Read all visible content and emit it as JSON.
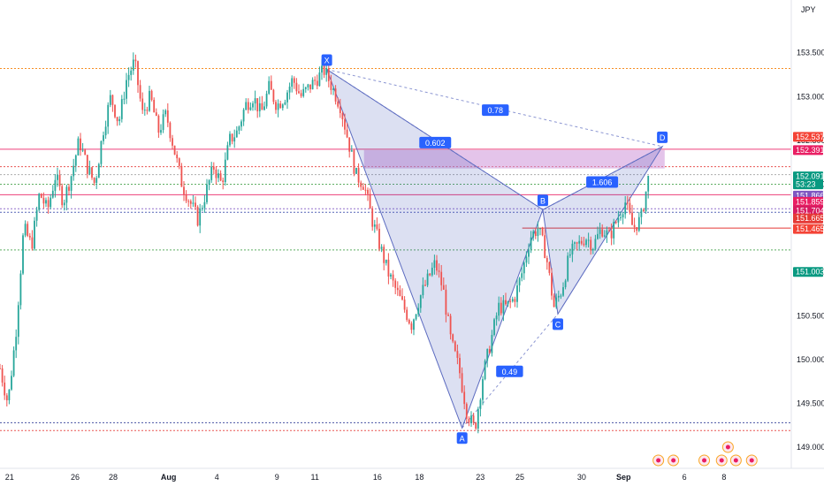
{
  "currency": "JPY",
  "chart_data": {
    "type": "candlestick",
    "ylim": [
      148.85,
      153.88
    ],
    "x_range": [
      0,
      100
    ],
    "y_ticks": [
      "153.500",
      "153.000",
      "152.500",
      "152.000",
      "151.500",
      "151.000",
      "150.500",
      "150.000",
      "149.500",
      "149.000"
    ],
    "y_tick_values": [
      153.5,
      153.0,
      152.5,
      152.0,
      151.5,
      151.0,
      150.5,
      150.0,
      149.5,
      149.0
    ],
    "x_ticks": [
      {
        "label": "21",
        "x": 1.2
      },
      {
        "label": "26",
        "x": 9.5
      },
      {
        "label": "28",
        "x": 14.3
      },
      {
        "label": "Aug",
        "x": 21.3,
        "bold": true
      },
      {
        "label": "4",
        "x": 27.4
      },
      {
        "label": "9",
        "x": 35.0
      },
      {
        "label": "11",
        "x": 39.8
      },
      {
        "label": "16",
        "x": 47.7
      },
      {
        "label": "18",
        "x": 53.0
      },
      {
        "label": "23",
        "x": 60.7
      },
      {
        "label": "25",
        "x": 65.7
      },
      {
        "label": "30",
        "x": 73.5
      },
      {
        "label": "Sep",
        "x": 78.8,
        "bold": true
      },
      {
        "label": "6",
        "x": 86.5
      },
      {
        "label": "8",
        "x": 91.5
      }
    ],
    "price_path": [
      [
        0,
        149.9
      ],
      [
        1,
        149.5
      ],
      [
        2,
        150.3
      ],
      [
        3,
        151.5
      ],
      [
        4,
        151.3
      ],
      [
        5,
        151.9
      ],
      [
        6,
        151.7
      ],
      [
        7,
        152.1
      ],
      [
        8,
        151.8
      ],
      [
        9,
        152.1
      ],
      [
        10,
        152.5
      ],
      [
        11,
        152.2
      ],
      [
        12,
        152.0
      ],
      [
        13,
        152.6
      ],
      [
        14,
        153.0
      ],
      [
        15,
        152.7
      ],
      [
        16,
        153.2
      ],
      [
        17,
        153.4
      ],
      [
        18,
        152.8
      ],
      [
        19,
        153.0
      ],
      [
        20,
        152.6
      ],
      [
        21,
        152.8
      ],
      [
        22,
        152.4
      ],
      [
        23,
        152.0
      ],
      [
        24,
        151.8
      ],
      [
        25,
        151.6
      ],
      [
        26,
        151.9
      ],
      [
        27,
        152.2
      ],
      [
        28,
        152.0
      ],
      [
        29,
        152.5
      ],
      [
        30,
        152.6
      ],
      [
        31,
        152.9
      ],
      [
        32,
        153.0
      ],
      [
        33,
        152.8
      ],
      [
        34,
        153.1
      ],
      [
        35,
        152.9
      ],
      [
        36,
        153.0
      ],
      [
        37,
        153.2
      ],
      [
        38,
        153.0
      ],
      [
        39,
        153.1
      ],
      [
        40,
        153.2
      ],
      [
        41,
        153.3
      ],
      [
        42,
        153.1
      ],
      [
        43,
        152.9
      ],
      [
        44,
        152.5
      ],
      [
        45,
        152.1
      ],
      [
        46,
        152.0
      ],
      [
        47,
        151.6
      ],
      [
        48,
        151.3
      ],
      [
        49,
        151.0
      ],
      [
        50,
        150.8
      ],
      [
        51,
        150.6
      ],
      [
        52,
        150.4
      ],
      [
        53,
        150.7
      ],
      [
        54,
        150.9
      ],
      [
        55,
        151.1
      ],
      [
        56,
        150.8
      ],
      [
        57,
        150.2
      ],
      [
        58,
        149.9
      ],
      [
        59,
        149.4
      ],
      [
        60,
        149.2
      ],
      [
        61,
        149.8
      ],
      [
        62,
        150.2
      ],
      [
        63,
        150.6
      ],
      [
        64,
        150.6
      ],
      [
        65,
        150.7
      ],
      [
        66,
        151.0
      ],
      [
        67,
        151.4
      ],
      [
        68,
        151.5
      ],
      [
        69,
        151.2
      ],
      [
        70,
        150.6
      ],
      [
        71,
        150.8
      ],
      [
        72,
        151.2
      ],
      [
        73,
        151.3
      ],
      [
        74,
        151.4
      ],
      [
        75,
        151.3
      ],
      [
        76,
        151.5
      ],
      [
        77,
        151.4
      ],
      [
        78,
        151.6
      ],
      [
        79,
        151.8
      ],
      [
        80,
        151.5
      ],
      [
        81,
        151.6
      ],
      [
        82,
        152.1
      ]
    ],
    "harmonic_pattern": {
      "points": [
        {
          "label": "X",
          "x": 41.3,
          "y": 153.31
        },
        {
          "label": "A",
          "x": 58.4,
          "y": 149.22
        },
        {
          "label": "B",
          "x": 68.6,
          "y": 151.71
        },
        {
          "label": "C",
          "x": 70.5,
          "y": 150.52
        },
        {
          "label": "D",
          "x": 83.7,
          "y": 152.43
        }
      ],
      "ratios": [
        {
          "label": "0.78",
          "x": 62.6,
          "y": 152.84
        },
        {
          "label": "0.602",
          "x": 55.0,
          "y": 152.47
        },
        {
          "label": "1.606",
          "x": 76.1,
          "y": 152.02
        },
        {
          "label": "0.49",
          "x": 64.4,
          "y": 149.86
        }
      ]
    },
    "zone": {
      "x1": 46.0,
      "x2": 84.0,
      "y_top": 152.39,
      "y_bottom": 152.18
    },
    "levels": [
      {
        "price": 153.32,
        "color": "#f57c00",
        "style": "dotted"
      },
      {
        "price": 152.4,
        "color": "#e91e63",
        "style": "solid"
      },
      {
        "price": 152.2,
        "color": "#e53935",
        "style": "dotted"
      },
      {
        "price": 152.11,
        "color": "#9e9e9e",
        "style": "dotted"
      },
      {
        "price": 152.0,
        "color": "#43a047",
        "style": "dotted"
      },
      {
        "price": 151.88,
        "color": "#e91e63",
        "style": "solid"
      },
      {
        "price": 151.72,
        "color": "#7e57c2",
        "style": "dotted"
      },
      {
        "price": 151.68,
        "color": "#3949ab",
        "style": "dotted"
      },
      {
        "price": 151.25,
        "color": "#43a047",
        "style": "dotted"
      },
      {
        "price": 149.28,
        "color": "#283593",
        "style": "dotted"
      },
      {
        "price": 149.19,
        "color": "#e53935",
        "style": "dotted"
      }
    ],
    "short_level": {
      "price": 151.5,
      "x1": 66.0,
      "x2": 100,
      "color": "#e53935"
    },
    "price_tags": [
      {
        "text": "152.537",
        "price": 152.54,
        "color": "#f44336"
      },
      {
        "text": "152.391",
        "price": 152.39,
        "color": "#e91e63"
      },
      {
        "text": "152.091",
        "price": 152.09,
        "color": "#089981",
        "sub": "53:23"
      },
      {
        "text": "151.866",
        "price": 151.87,
        "color": "#7e57c2"
      },
      {
        "text": "151.859",
        "price": 151.8,
        "color": "#e91e63"
      },
      {
        "text": "151.704",
        "price": 151.7,
        "color": "#d81b60"
      },
      {
        "text": "151.665",
        "price": 151.61,
        "color": "#e53935"
      },
      {
        "text": "151.465",
        "price": 151.49,
        "color": "#f44336"
      },
      {
        "text": "151.003",
        "price": 151.0,
        "color": "#089981"
      }
    ]
  },
  "colors": {
    "up": "#26a69a",
    "down": "#ef5350",
    "pattern_fill": "#3f51b5",
    "pattern_line": "#5c6bc0",
    "label_bg": "#2962ff",
    "zone_fill": "#ce93d8"
  }
}
